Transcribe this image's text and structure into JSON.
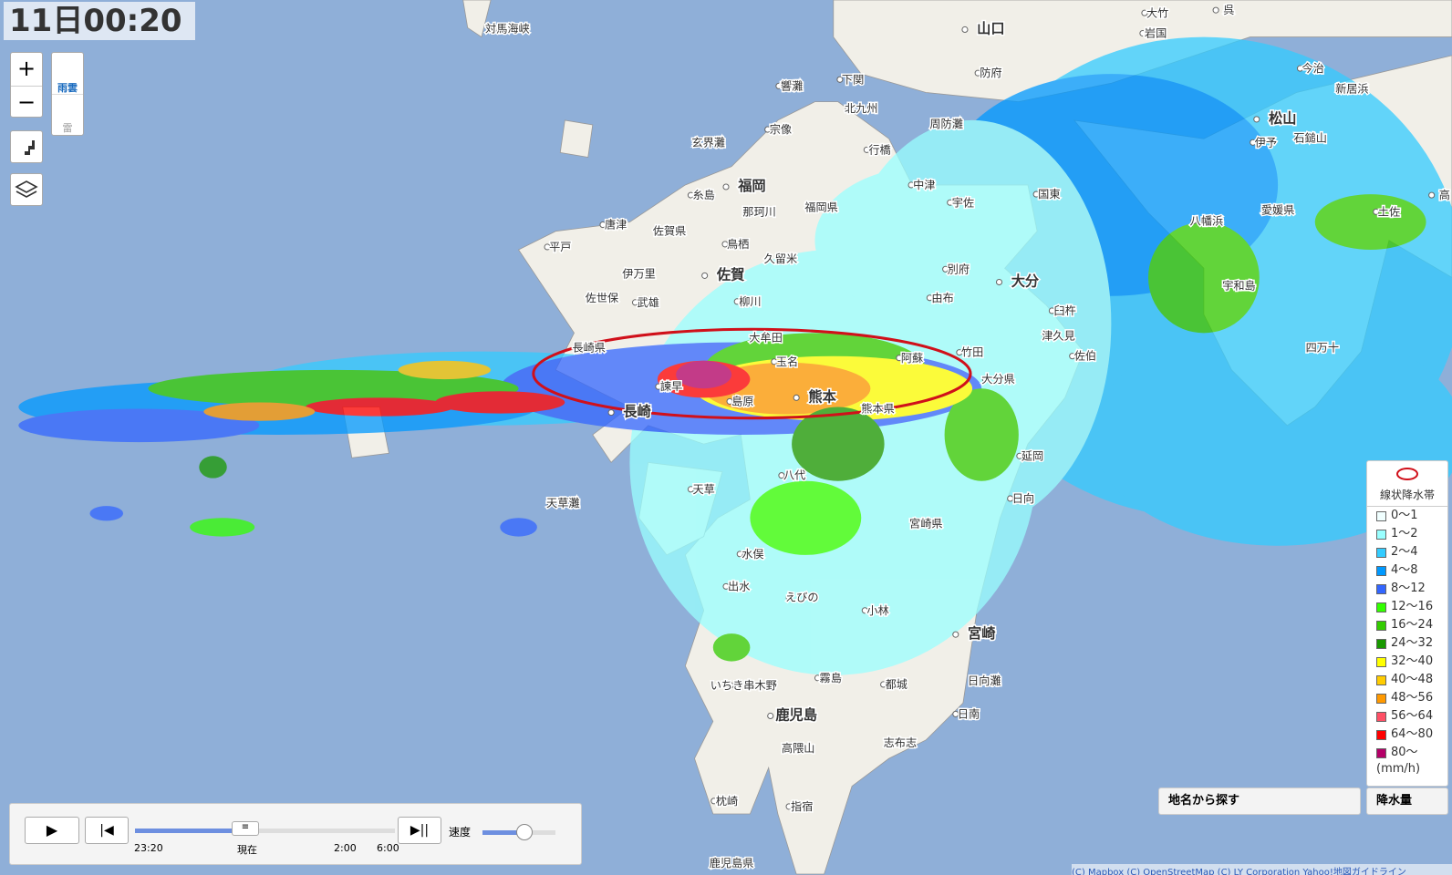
{
  "timestamp": "11日00:20",
  "controls": {
    "zoom_in": "+",
    "zoom_out": "−",
    "layer_rain": "雨雲",
    "layer_thunder": "雷"
  },
  "map_labels": [
    "山口",
    "岩国",
    "大竹",
    "呉",
    "下関",
    "防府",
    "北九州",
    "周防灘",
    "宗像",
    "行橋",
    "玄界灘",
    "松山",
    "今治",
    "新居浜",
    "伊予",
    "石鎚山",
    "福岡",
    "糸島",
    "中津",
    "宇佐",
    "国東",
    "那珂川",
    "福岡県",
    "唐津",
    "佐賀県",
    "平戸",
    "鳥栖",
    "久留米",
    "八幡浜",
    "愛媛県",
    "土佐",
    "高",
    "伊万里",
    "佐賀",
    "別府",
    "大分",
    "宇和島",
    "佐世保",
    "武雄",
    "柳川",
    "由布",
    "臼杵",
    "大牟田",
    "津久見",
    "竹田",
    "長崎県",
    "四万十",
    "玉名",
    "阿蘇",
    "佐伯",
    "大分県",
    "諫早",
    "熊本",
    "島原",
    "熊本県",
    "長崎",
    "延岡",
    "八代",
    "天草",
    "天草灘",
    "日向",
    "宮崎県",
    "水俣",
    "出水",
    "えびの",
    "小林",
    "宮崎",
    "いちき串木野",
    "霧島",
    "都城",
    "日向灘",
    "鹿児島",
    "日南",
    "志布志",
    "高隈山",
    "枕崎",
    "指宿",
    "鹿児島県",
    "響灘",
    "対馬海峡"
  ],
  "legend": {
    "band_label": "線状降水帯",
    "ranges": [
      "0〜1",
      "1〜2",
      "2〜4",
      "4〜8",
      "8〜12",
      "12〜16",
      "16〜24",
      "24〜32",
      "32〜40",
      "40〜48",
      "48〜56",
      "56〜64",
      "64〜80",
      "80〜"
    ],
    "colors": [
      "#f0ffff",
      "#99ffff",
      "#33ccff",
      "#0099ff",
      "#3366ff",
      "#33ff00",
      "#33cc00",
      "#199900",
      "#ffff00",
      "#ffcc00",
      "#ff9900",
      "#ff5066",
      "#ff0000",
      "#b40068"
    ],
    "unit": "(mm/h)"
  },
  "search": {
    "place": "地名から探す",
    "layer": "降水量"
  },
  "player": {
    "start": "23:20",
    "now": "現在",
    "t1": "2:00",
    "t2": "6:00",
    "speed": "速度"
  },
  "attribution": "(C) Mapbox (C) OpenStreetMap (C) LY Corporation Yahoo!地図ガイドライン"
}
